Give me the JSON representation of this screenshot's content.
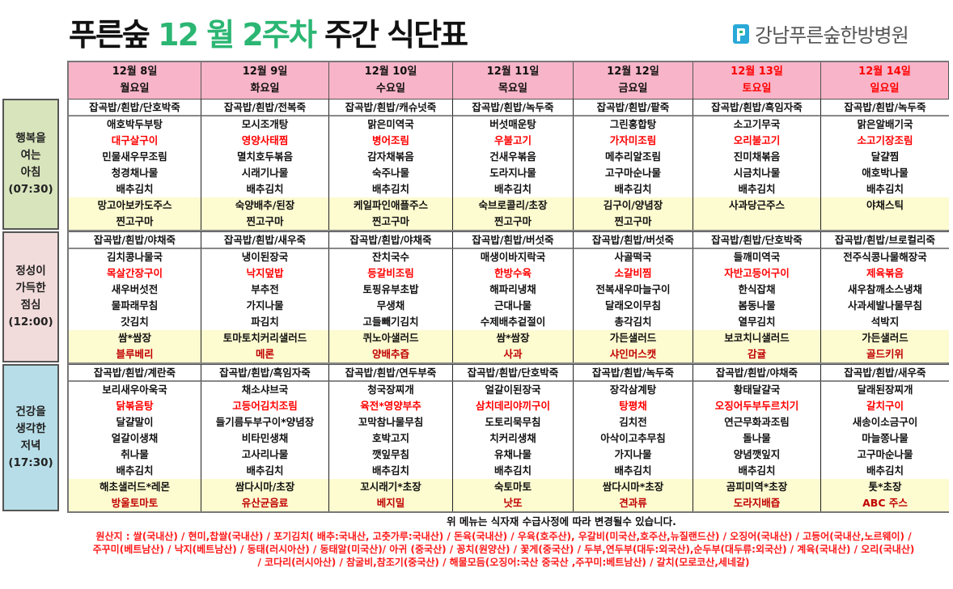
{
  "header": {
    "title_a": "푸른숲 ",
    "title_b": "12 월 2주차",
    "title_c": " 주간 식단표",
    "logo_text": "강남푸른숲한방병원",
    "accent": "#2bb673"
  },
  "colors": {
    "highlight": "#ff0000",
    "fruit": "#c00000",
    "weekend": "#ff0000",
    "header_bg": "#f8b4c8",
    "snack_bg": "#fdfbd0"
  },
  "days": [
    {
      "date": "12월 8일",
      "weekday": "월요일",
      "weekend": false
    },
    {
      "date": "12월 9일",
      "weekday": "화요일",
      "weekend": false
    },
    {
      "date": "12월 10일",
      "weekday": "수요일",
      "weekend": false
    },
    {
      "date": "12월 11일",
      "weekday": "목요일",
      "weekend": false
    },
    {
      "date": "12월 12일",
      "weekday": "금요일",
      "weekend": false
    },
    {
      "date": "12월 13일",
      "weekday": "토요일",
      "weekend": true
    },
    {
      "date": "12월 14일",
      "weekday": "일요일",
      "weekend": true
    }
  ],
  "meals": [
    {
      "label": [
        "행복을",
        "여는",
        "아침",
        "(07:30)"
      ],
      "bg": "#d8e4bc",
      "snack_second_colored": false,
      "menus": [
        {
          "rice": "잡곡밥/흰밥/단호박죽",
          "main": [
            "애호박두부탕",
            "대구살구이",
            "민물새우무조림",
            "청경채나물",
            "배추김치"
          ],
          "snack": [
            "망고아보카도주스",
            "찐고구마"
          ]
        },
        {
          "rice": "잡곡밥/흰밥/전복죽",
          "main": [
            "모시조개탕",
            "영양사태찜",
            "멸치호두볶음",
            "시래기나물",
            "배추김치"
          ],
          "snack": [
            "숙양배추/된장",
            "찐고구마"
          ]
        },
        {
          "rice": "잡곡밥/흰밥/캐슈넛죽",
          "main": [
            "맑은미역국",
            "병어조림",
            "감자채볶음",
            "숙주나물",
            "배추김치"
          ],
          "snack": [
            "케일파인애플주스",
            "찐고구마"
          ]
        },
        {
          "rice": "잡곡밥/흰밥/녹두죽",
          "main": [
            "버섯매운탕",
            "우불고기",
            "건새우볶음",
            "도라지나물",
            "배추김치"
          ],
          "snack": [
            "숙브로콜리/초장",
            "찐고구마"
          ]
        },
        {
          "rice": "잡곡밥/흰밥/팥죽",
          "main": [
            "그린홍합탕",
            "가자미조림",
            "메추리알조림",
            "고구마순나물",
            "배추김치"
          ],
          "snack": [
            "김구이/양념장",
            "찐고구마"
          ]
        },
        {
          "rice": "잡곡밥/흰밥/흑임자죽",
          "main": [
            "소고기무국",
            "오리불고기",
            "진미채볶음",
            "시금치나물",
            "배추김치"
          ],
          "snack": [
            "사과당근주스",
            ""
          ]
        },
        {
          "rice": "잡곡밥/흰밥/녹두죽",
          "main": [
            "맑은알배기국",
            "소고기장조림",
            "달걀찜",
            "애호박나물",
            "배추김치"
          ],
          "snack": [
            "야채스틱",
            ""
          ]
        }
      ]
    },
    {
      "label": [
        "정성이",
        "가득한",
        "점심",
        "(12:00)"
      ],
      "bg": "#f2dcdb",
      "snack_second_colored": true,
      "menus": [
        {
          "rice": "잡곡밥/흰밥/야채죽",
          "main": [
            "김치콩나물국",
            "목살간장구이",
            "새우버섯전",
            "물파래무침",
            "갓김치"
          ],
          "snack": [
            "쌈*쌈장",
            "블루베리"
          ]
        },
        {
          "rice": "잡곡밥/흰밥/새우죽",
          "main": [
            "냉이된장국",
            "낙지덮밥",
            "부추전",
            "가지나물",
            "파김치"
          ],
          "snack": [
            "토마토치커리샐러드",
            "메론"
          ]
        },
        {
          "rice": "잡곡밥/흰밥/야채죽",
          "main": [
            "잔치국수",
            "등갈비조림",
            "토핑유부초밥",
            "무생채",
            "고들빼기김치"
          ],
          "snack": [
            "퀴노아샐러드",
            "양배추즙"
          ]
        },
        {
          "rice": "잡곡밥/흰밥/버섯죽",
          "main": [
            "매생이바지락국",
            "한방수육",
            "해파리냉채",
            "근대나물",
            "수제배추겉절이"
          ],
          "snack": [
            "쌈*쌈장",
            "사과"
          ]
        },
        {
          "rice": "잡곡밥/흰밥/버섯죽",
          "main": [
            "사골떡국",
            "소갈비찜",
            "전복새우마늘구이",
            "달래오이무침",
            "총각김치"
          ],
          "snack": [
            "가든샐러드",
            "샤인머스캣"
          ]
        },
        {
          "rice": "잡곡밥/흰밥/단호박죽",
          "main": [
            "들깨미역국",
            "자반고등어구이",
            "한식잡채",
            "봄동나물",
            "열무김치"
          ],
          "snack": [
            "보코치니샐러드",
            "감귤"
          ]
        },
        {
          "rice": "잡곡밥/흰밥/브로컬리죽",
          "main": [
            "전주식콩나물해장국",
            "제육볶음",
            "새우참깨소스냉채",
            "사과세발나물무침",
            "석박지"
          ],
          "snack": [
            "가든샐러드",
            "골드키위"
          ]
        }
      ]
    },
    {
      "label": [
        "건강을",
        "생각한",
        "저녁",
        "(17:30)"
      ],
      "bg": "#b7dee8",
      "snack_second_colored": true,
      "menus": [
        {
          "rice": "잡곡밥/흰밥/계란죽",
          "main": [
            "보리새우아욱국",
            "닭볶음탕",
            "달걀말이",
            "얼갈이생채",
            "취나물",
            "배추김치"
          ],
          "snack": [
            "해초샐러드*레몬",
            "방울토마토"
          ]
        },
        {
          "rice": "잡곡밥/흰밥/흑임자죽",
          "main": [
            "채소샤브국",
            "고등어김치조림",
            "들기름두부구이*양념장",
            "비타민생채",
            "고사리나물",
            "배추김치"
          ],
          "snack": [
            "쌈다시마/초장",
            "유산균음료"
          ]
        },
        {
          "rice": "잡곡밥/흰밥/연두부죽",
          "main": [
            "청국장찌개",
            "육전*영양부추",
            "꼬막참나물무침",
            "호박고지",
            "깻잎무침",
            "배추김치"
          ],
          "snack": [
            "꼬시래기*초장",
            "베지밀"
          ]
        },
        {
          "rice": "잡곡밥/흰밥/단호박죽",
          "main": [
            "얼갈이된장국",
            "삼치데리야끼구이",
            "도토리묵무침",
            "치커리생채",
            "유채나물",
            "배추김치"
          ],
          "snack": [
            "숙토마토",
            "낫또"
          ]
        },
        {
          "rice": "잡곡밥/흰밥/녹두죽",
          "main": [
            "장각삼계탕",
            "탕평채",
            "김치전",
            "아삭이고추무침",
            "가지나물",
            "배추김치"
          ],
          "snack": [
            "쌈다시마*초장",
            "견과류"
          ]
        },
        {
          "rice": "잡곡밥/흰밥/야채죽",
          "main": [
            "황태달걀국",
            "오징어두부두르치기",
            "연근무화과조림",
            "돌나물",
            "양념깻잎지",
            "배추김치"
          ],
          "snack": [
            "곰피미역*초장",
            "도라지배즙"
          ]
        },
        {
          "rice": "잡곡밥/흰밥/새우죽",
          "main": [
            "달래된장찌개",
            "갈치구이",
            "새송이소금구이",
            "마늘쫑나물",
            "고구마순나물",
            "배추김치"
          ],
          "snack": [
            "톳*초장",
            "ABC 주스"
          ]
        }
      ]
    }
  ],
  "footer": {
    "notice": "위 메뉴는 식자재 수급사정에 따라 변경될수 있습니다.",
    "origin": [
      "원산지 : 쌀(국내산) / 현미,찹쌀(국내산) / 포기김치( 배추:국내산, 고춧가루:국내산) / 돈육(국내산) / 우육(호주산), 우갈비(미국산,호주산,뉴질랜드산) / 오징어(국내산) / 고등어(국내산,노르웨이) /",
      "주꾸미(베트남산) / 낙지(베트남산) / 동태(러시아산) / 동태알(미국산)/ 아귀 (중국산) / 꽁치(원양산) / 꽃게(중국산) / 두부,연두부(대두:외국산),순두부(대두류:외국산) / 계육(국내산) / 오리(국내산)",
      "/ 코다리(러시아산) / 참굴비,참조기(중국산) / 해물모듬(오징어:국산 중국산 ,주꾸미:베트남산) / 갈치(모로코산,세네갈)"
    ]
  }
}
